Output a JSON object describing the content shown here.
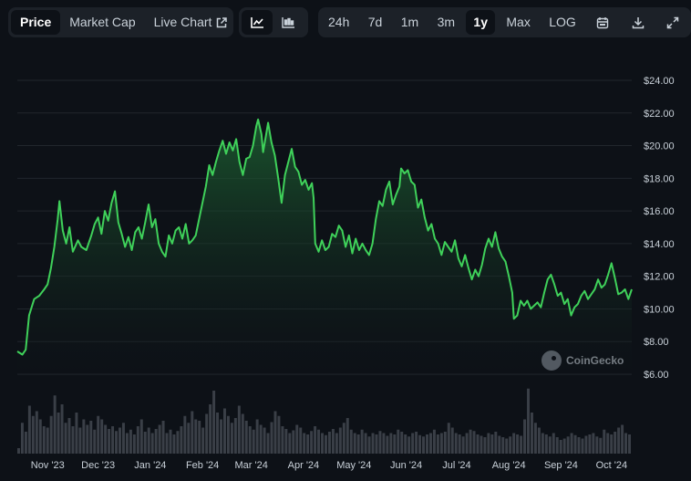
{
  "toolbar": {
    "view_tabs": [
      {
        "label": "Price",
        "active": true
      },
      {
        "label": "Market Cap",
        "active": false
      },
      {
        "label": "Live Chart",
        "active": false,
        "icon": "external-link-icon"
      }
    ],
    "chart_types": [
      {
        "icon": "line-chart-icon",
        "active": true
      },
      {
        "icon": "candlestick-chart-icon",
        "active": false
      }
    ],
    "ranges": [
      {
        "label": "24h",
        "active": false
      },
      {
        "label": "7d",
        "active": false
      },
      {
        "label": "1m",
        "active": false
      },
      {
        "label": "3m",
        "active": false
      },
      {
        "label": "1y",
        "active": true
      },
      {
        "label": "Max",
        "active": false
      },
      {
        "label": "LOG",
        "active": false
      }
    ],
    "tools": [
      "calendar-icon",
      "download-icon",
      "expand-icon"
    ]
  },
  "watermark": {
    "text": "CoinGecko"
  },
  "colors": {
    "line": "#3fd15a",
    "area_top": "#1f6b35",
    "background": "#0d1117",
    "volume": "#3a3f47",
    "grid": "#21262d"
  },
  "chart_data": {
    "type": "area",
    "y_unit": "USD",
    "ylim": [
      6,
      24
    ],
    "yticks": [
      "$24.00",
      "$22.00",
      "$20.00",
      "$18.00",
      "$16.00",
      "$14.00",
      "$12.00",
      "$10.00",
      "$8.00",
      "$6.00"
    ],
    "ytick_values": [
      24,
      22,
      20,
      18,
      16,
      14,
      12,
      10,
      8,
      6
    ],
    "xticks": [
      "Nov '23",
      "Dec '23",
      "Jan '24",
      "Feb '24",
      "Mar '24",
      "Apr '24",
      "May '24",
      "Jun '24",
      "Jul '24",
      "Aug '24",
      "Sep '24",
      "Oct '24"
    ],
    "xtick_days": [
      18,
      48,
      79,
      110,
      139,
      170,
      200,
      231,
      261,
      292,
      323,
      353
    ],
    "x_start": "2023-10-14",
    "x_end": "2024-10-13",
    "series": [
      {
        "name": "",
        "points": [
          [
            0,
            7.4
          ],
          [
            3,
            7.2
          ],
          [
            5,
            7.5
          ],
          [
            7,
            9.6
          ],
          [
            10,
            10.6
          ],
          [
            13,
            10.8
          ],
          [
            16,
            11.2
          ],
          [
            18,
            11.5
          ],
          [
            20,
            12.5
          ],
          [
            22,
            13.8
          ],
          [
            24,
            15.5
          ],
          [
            25,
            16.6
          ],
          [
            27,
            14.8
          ],
          [
            29,
            14.0
          ],
          [
            31,
            15.0
          ],
          [
            33,
            13.5
          ],
          [
            36,
            14.2
          ],
          [
            38,
            13.8
          ],
          [
            41,
            13.6
          ],
          [
            44,
            14.5
          ],
          [
            46,
            15.2
          ],
          [
            48,
            15.6
          ],
          [
            50,
            14.6
          ],
          [
            52,
            16.0
          ],
          [
            54,
            15.4
          ],
          [
            56,
            16.5
          ],
          [
            58,
            17.2
          ],
          [
            60,
            15.3
          ],
          [
            62,
            14.6
          ],
          [
            64,
            13.8
          ],
          [
            66,
            14.4
          ],
          [
            68,
            13.6
          ],
          [
            70,
            14.7
          ],
          [
            72,
            15.0
          ],
          [
            74,
            14.3
          ],
          [
            76,
            15.3
          ],
          [
            78,
            16.4
          ],
          [
            80,
            15.0
          ],
          [
            82,
            15.5
          ],
          [
            84,
            14.0
          ],
          [
            86,
            13.5
          ],
          [
            88,
            13.2
          ],
          [
            90,
            14.5
          ],
          [
            92,
            14.0
          ],
          [
            94,
            14.8
          ],
          [
            96,
            15.0
          ],
          [
            98,
            14.3
          ],
          [
            100,
            15.2
          ],
          [
            102,
            14.0
          ],
          [
            104,
            14.2
          ],
          [
            106,
            14.5
          ],
          [
            108,
            15.5
          ],
          [
            110,
            16.5
          ],
          [
            112,
            17.5
          ],
          [
            114,
            18.8
          ],
          [
            116,
            18.2
          ],
          [
            118,
            19.0
          ],
          [
            120,
            19.7
          ],
          [
            122,
            20.3
          ],
          [
            124,
            19.5
          ],
          [
            126,
            20.2
          ],
          [
            128,
            19.7
          ],
          [
            130,
            20.4
          ],
          [
            132,
            19.0
          ],
          [
            134,
            18.2
          ],
          [
            136,
            19.2
          ],
          [
            138,
            19.3
          ],
          [
            140,
            20.0
          ],
          [
            142,
            21.2
          ],
          [
            143,
            21.6
          ],
          [
            145,
            20.7
          ],
          [
            146,
            19.6
          ],
          [
            148,
            20.8
          ],
          [
            149,
            21.4
          ],
          [
            151,
            20.2
          ],
          [
            153,
            19.4
          ],
          [
            155,
            18.0
          ],
          [
            157,
            16.5
          ],
          [
            159,
            18.2
          ],
          [
            161,
            19.0
          ],
          [
            163,
            19.8
          ],
          [
            165,
            18.7
          ],
          [
            167,
            18.4
          ],
          [
            169,
            17.6
          ],
          [
            171,
            17.9
          ],
          [
            173,
            17.3
          ],
          [
            175,
            17.7
          ],
          [
            176,
            16.8
          ],
          [
            177,
            14.0
          ],
          [
            179,
            13.5
          ],
          [
            181,
            14.2
          ],
          [
            183,
            13.6
          ],
          [
            185,
            13.8
          ],
          [
            187,
            14.6
          ],
          [
            189,
            14.4
          ],
          [
            191,
            15.1
          ],
          [
            193,
            14.8
          ],
          [
            195,
            13.8
          ],
          [
            197,
            14.5
          ],
          [
            199,
            13.4
          ],
          [
            201,
            14.3
          ],
          [
            203,
            13.6
          ],
          [
            205,
            14.0
          ],
          [
            207,
            13.6
          ],
          [
            209,
            13.3
          ],
          [
            211,
            14.0
          ],
          [
            213,
            15.5
          ],
          [
            215,
            16.6
          ],
          [
            217,
            16.3
          ],
          [
            219,
            17.3
          ],
          [
            221,
            17.8
          ],
          [
            223,
            16.4
          ],
          [
            225,
            17.0
          ],
          [
            227,
            17.5
          ],
          [
            228,
            18.6
          ],
          [
            230,
            18.3
          ],
          [
            232,
            18.5
          ],
          [
            234,
            17.8
          ],
          [
            236,
            17.6
          ],
          [
            238,
            16.2
          ],
          [
            240,
            16.7
          ],
          [
            242,
            15.6
          ],
          [
            244,
            14.8
          ],
          [
            246,
            15.2
          ],
          [
            248,
            14.3
          ],
          [
            250,
            14.0
          ],
          [
            252,
            13.3
          ],
          [
            254,
            14.1
          ],
          [
            256,
            13.8
          ],
          [
            258,
            13.5
          ],
          [
            260,
            14.2
          ],
          [
            262,
            13.1
          ],
          [
            264,
            12.6
          ],
          [
            266,
            13.3
          ],
          [
            268,
            12.5
          ],
          [
            270,
            11.8
          ],
          [
            272,
            12.4
          ],
          [
            274,
            12.0
          ],
          [
            276,
            12.7
          ],
          [
            278,
            13.7
          ],
          [
            280,
            14.3
          ],
          [
            282,
            13.8
          ],
          [
            284,
            14.7
          ],
          [
            286,
            13.7
          ],
          [
            288,
            13.2
          ],
          [
            290,
            12.9
          ],
          [
            292,
            12.0
          ],
          [
            294,
            11.0
          ],
          [
            295,
            9.4
          ],
          [
            297,
            9.6
          ],
          [
            299,
            10.5
          ],
          [
            301,
            10.2
          ],
          [
            303,
            10.5
          ],
          [
            305,
            10.0
          ],
          [
            307,
            10.2
          ],
          [
            309,
            10.4
          ],
          [
            311,
            10.1
          ],
          [
            313,
            11.0
          ],
          [
            315,
            11.8
          ],
          [
            317,
            12.1
          ],
          [
            319,
            11.5
          ],
          [
            321,
            10.8
          ],
          [
            323,
            11.0
          ],
          [
            325,
            10.3
          ],
          [
            327,
            10.6
          ],
          [
            329,
            9.6
          ],
          [
            331,
            10.1
          ],
          [
            333,
            10.3
          ],
          [
            335,
            10.8
          ],
          [
            337,
            11.1
          ],
          [
            339,
            10.6
          ],
          [
            341,
            10.9
          ],
          [
            343,
            11.2
          ],
          [
            345,
            11.8
          ],
          [
            347,
            11.3
          ],
          [
            349,
            11.5
          ],
          [
            351,
            12.1
          ],
          [
            353,
            12.8
          ],
          [
            355,
            11.9
          ],
          [
            357,
            10.9
          ],
          [
            359,
            11.0
          ],
          [
            361,
            11.2
          ],
          [
            363,
            10.6
          ],
          [
            365,
            11.2
          ]
        ]
      }
    ],
    "volume": [
      0.08,
      0.45,
      0.32,
      0.7,
      0.55,
      0.62,
      0.5,
      0.4,
      0.38,
      0.55,
      0.85,
      0.6,
      0.72,
      0.45,
      0.52,
      0.4,
      0.6,
      0.38,
      0.5,
      0.42,
      0.48,
      0.35,
      0.55,
      0.5,
      0.42,
      0.36,
      0.4,
      0.33,
      0.38,
      0.45,
      0.3,
      0.35,
      0.28,
      0.4,
      0.5,
      0.32,
      0.38,
      0.3,
      0.36,
      0.42,
      0.48,
      0.3,
      0.35,
      0.28,
      0.33,
      0.4,
      0.55,
      0.45,
      0.62,
      0.5,
      0.48,
      0.38,
      0.58,
      0.72,
      0.92,
      0.6,
      0.5,
      0.66,
      0.55,
      0.45,
      0.52,
      0.7,
      0.58,
      0.48,
      0.4,
      0.35,
      0.5,
      0.42,
      0.38,
      0.3,
      0.46,
      0.62,
      0.55,
      0.4,
      0.36,
      0.3,
      0.34,
      0.42,
      0.38,
      0.3,
      0.28,
      0.33,
      0.4,
      0.35,
      0.3,
      0.27,
      0.32,
      0.36,
      0.3,
      0.38,
      0.45,
      0.52,
      0.35,
      0.3,
      0.28,
      0.35,
      0.3,
      0.25,
      0.3,
      0.28,
      0.33,
      0.3,
      0.26,
      0.3,
      0.28,
      0.35,
      0.32,
      0.28,
      0.25,
      0.3,
      0.32,
      0.27,
      0.25,
      0.28,
      0.3,
      0.35,
      0.28,
      0.3,
      0.32,
      0.45,
      0.38,
      0.3,
      0.28,
      0.25,
      0.3,
      0.35,
      0.33,
      0.28,
      0.26,
      0.24,
      0.3,
      0.28,
      0.32,
      0.26,
      0.24,
      0.22,
      0.25,
      0.3,
      0.28,
      0.26,
      0.5,
      0.95,
      0.6,
      0.45,
      0.38,
      0.3,
      0.28,
      0.25,
      0.3,
      0.24,
      0.2,
      0.22,
      0.25,
      0.3,
      0.27,
      0.24,
      0.22,
      0.26,
      0.28,
      0.3,
      0.25,
      0.23,
      0.35,
      0.3,
      0.28,
      0.32,
      0.38,
      0.42,
      0.3,
      0.28
    ]
  }
}
